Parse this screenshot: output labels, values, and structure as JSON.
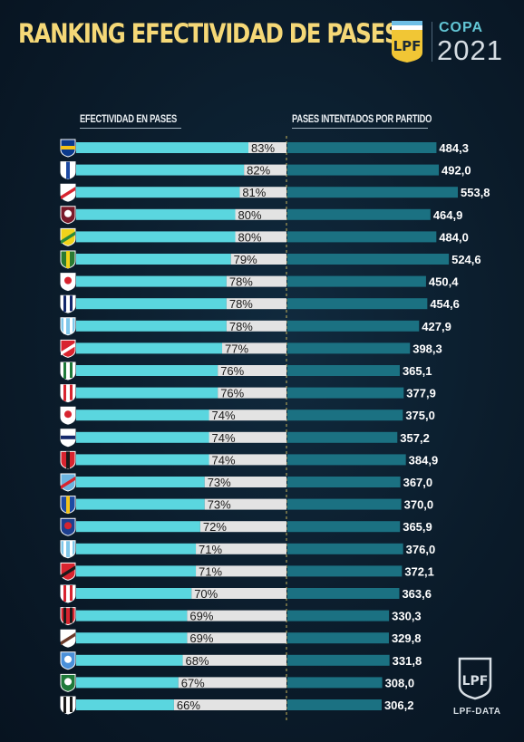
{
  "header": {
    "title": "RANKING EFECTIVIDAD DE PASES",
    "copa_label": "COPA",
    "copa_year": "2021"
  },
  "columns": {
    "left": "EFECTIVIDAD EN PASES",
    "right": "PASES INTENTADOS POR PARTIDO"
  },
  "footer": {
    "label": "LPF-DATA"
  },
  "colors": {
    "title": "#f5d877",
    "pct_bar": "#5ad6df",
    "pct_label_bg": "#e3e3e3",
    "passes_bar": "#1b7182",
    "divider": "#c9b45a"
  },
  "chart_data": [
    {
      "type": "bar",
      "title": "EFECTIVIDAD EN PASES",
      "orientation": "horizontal",
      "unit": "%",
      "categories": [
        "Boca Juniors",
        "Vélez Sarsfield",
        "River Plate",
        "Lanús",
        "Defensa y Justicia",
        "Aldosivi",
        "Argentinos Juniors",
        "Talleres",
        "Racing Club",
        "Independiente",
        "Banfield",
        "Unión",
        "Huracán",
        "Gimnasia LP",
        "Newell's Old Boys",
        "Arsenal",
        "Rosario Central",
        "San Lorenzo",
        "Atlético Tucumán",
        "Colón",
        "Estudiantes",
        "Patronato",
        "Platense",
        "Godoy Cruz",
        "Sarmiento",
        "Central Córdoba"
      ],
      "values": [
        83,
        82,
        81,
        80,
        80,
        79,
        78,
        78,
        78,
        77,
        76,
        76,
        74,
        74,
        74,
        73,
        73,
        72,
        71,
        71,
        70,
        69,
        69,
        68,
        67,
        66
      ],
      "labels": [
        "83%",
        "82%",
        "81%",
        "80%",
        "80%",
        "79%",
        "78%",
        "78%",
        "78%",
        "77%",
        "76%",
        "76%",
        "74%",
        "74%",
        "74%",
        "73%",
        "73%",
        "72%",
        "71%",
        "71%",
        "70%",
        "69%",
        "69%",
        "68%",
        "67%",
        "66%"
      ]
    },
    {
      "type": "bar",
      "title": "PASES INTENTADOS POR PARTIDO",
      "orientation": "horizontal",
      "values": [
        484.3,
        492.0,
        553.8,
        464.9,
        484.0,
        524.6,
        450.4,
        454.6,
        427.9,
        398.3,
        365.1,
        377.9,
        375.0,
        357.2,
        384.9,
        367.0,
        370.0,
        365.9,
        376.0,
        372.1,
        363.6,
        330.3,
        329.8,
        331.8,
        308.0,
        306.2
      ],
      "labels": [
        "484,3",
        "492,0",
        "553,8",
        "464,9",
        "484,0",
        "524,6",
        "450,4",
        "454,6",
        "427,9",
        "398,3",
        "365,1",
        "377,9",
        "375,0",
        "357,2",
        "384,9",
        "367,0",
        "370,0",
        "365,9",
        "376,0",
        "372,1",
        "363,6",
        "330,3",
        "329,8",
        "331,8",
        "308,0",
        "306,2"
      ]
    }
  ],
  "crests": [
    {
      "icon": "boca-juniors-crest",
      "c1": "#0b3a8c",
      "c2": "#f3c318",
      "stripe": "h"
    },
    {
      "icon": "velez-sarsfield-crest",
      "c1": "#ffffff",
      "c2": "#1d4aa3",
      "stripe": "v"
    },
    {
      "icon": "river-plate-crest",
      "c1": "#ffffff",
      "c2": "#d8242f",
      "stripe": "d"
    },
    {
      "icon": "lanus-crest",
      "c1": "#7a1a2a",
      "c2": "#ffffff",
      "stripe": "c"
    },
    {
      "icon": "defensa-y-justicia-crest",
      "c1": "#f1d31a",
      "c2": "#2a8a3a",
      "stripe": "d"
    },
    {
      "icon": "aldosivi-crest",
      "c1": "#2a7a32",
      "c2": "#f1d31a",
      "stripe": "v"
    },
    {
      "icon": "argentinos-juniors-crest",
      "c1": "#ffffff",
      "c2": "#d8242f",
      "stripe": "c"
    },
    {
      "icon": "talleres-crest",
      "c1": "#ffffff",
      "c2": "#13286b",
      "stripe": "s"
    },
    {
      "icon": "racing-club-crest",
      "c1": "#7fc7ea",
      "c2": "#ffffff",
      "stripe": "s"
    },
    {
      "icon": "independiente-crest",
      "c1": "#d8242f",
      "c2": "#ffffff",
      "stripe": "d"
    },
    {
      "icon": "banfield-crest",
      "c1": "#ffffff",
      "c2": "#1f7a3a",
      "stripe": "s"
    },
    {
      "icon": "union-crest",
      "c1": "#ffffff",
      "c2": "#d8242f",
      "stripe": "s"
    },
    {
      "icon": "huracan-crest",
      "c1": "#ffffff",
      "c2": "#d8242f",
      "stripe": "c"
    },
    {
      "icon": "gimnasia-lp-crest",
      "c1": "#ffffff",
      "c2": "#13286b",
      "stripe": "h"
    },
    {
      "icon": "newells-old-boys-crest",
      "c1": "#d8242f",
      "c2": "#1a1a1a",
      "stripe": "v"
    },
    {
      "icon": "arsenal-crest",
      "c1": "#6cb5e0",
      "c2": "#d8242f",
      "stripe": "d"
    },
    {
      "icon": "rosario-central-crest",
      "c1": "#1d4aa3",
      "c2": "#f3c318",
      "stripe": "v"
    },
    {
      "icon": "san-lorenzo-crest",
      "c1": "#1d3f8f",
      "c2": "#d8242f",
      "stripe": "c"
    },
    {
      "icon": "atletico-tucuman-crest",
      "c1": "#7fc7ea",
      "c2": "#ffffff",
      "stripe": "s"
    },
    {
      "icon": "colon-crest",
      "c1": "#d8242f",
      "c2": "#1a1a1a",
      "stripe": "d"
    },
    {
      "icon": "estudiantes-crest",
      "c1": "#ffffff",
      "c2": "#d8242f",
      "stripe": "s"
    },
    {
      "icon": "patronato-crest",
      "c1": "#d8242f",
      "c2": "#1a1a1a",
      "stripe": "s"
    },
    {
      "icon": "platense-crest",
      "c1": "#ffffff",
      "c2": "#6b3a2a",
      "stripe": "d"
    },
    {
      "icon": "godoy-cruz-crest",
      "c1": "#4a90d9",
      "c2": "#ffffff",
      "stripe": "c"
    },
    {
      "icon": "sarmiento-crest",
      "c1": "#1f7a3a",
      "c2": "#ffffff",
      "stripe": "c"
    },
    {
      "icon": "central-cordoba-crest",
      "c1": "#ffffff",
      "c2": "#1a1a1a",
      "stripe": "s"
    }
  ]
}
